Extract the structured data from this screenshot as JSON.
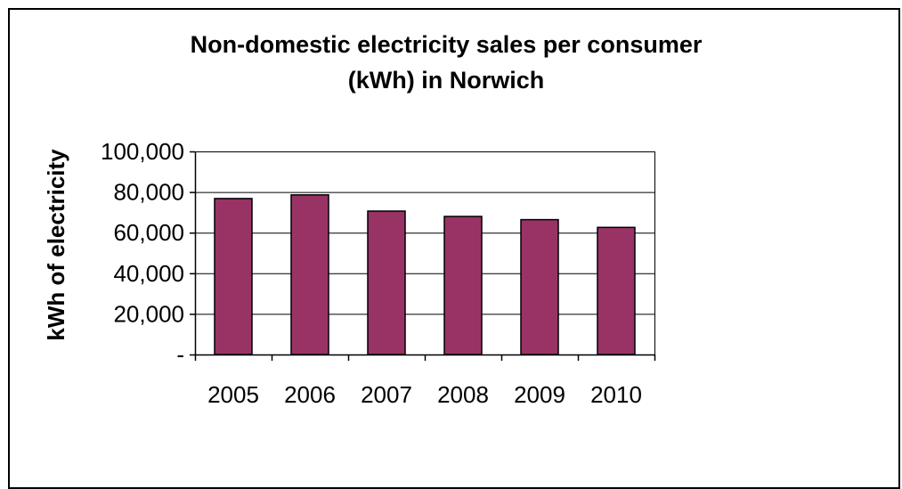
{
  "chart_data": {
    "type": "bar",
    "title_lines": [
      "Non-domestic electricity sales per consumer",
      "(kWh) in Norwich"
    ],
    "xlabel": "",
    "ylabel": "kWh of electricity",
    "categories": [
      "2005",
      "2006",
      "2007",
      "2008",
      "2009",
      "2010"
    ],
    "values": [
      76800,
      78600,
      70600,
      68000,
      66400,
      62600
    ],
    "ylim": [
      0,
      100000
    ],
    "yticks": [
      0,
      20000,
      40000,
      60000,
      80000,
      100000
    ],
    "ytick_labels": [
      "-",
      "20,000",
      "40,000",
      "60,000",
      "80,000",
      "100,000"
    ],
    "grid": true,
    "legend": "none",
    "colors": {
      "bar": "#993366",
      "bar_stroke": "#000000",
      "grid": "#000000",
      "axis": "#000000"
    }
  }
}
